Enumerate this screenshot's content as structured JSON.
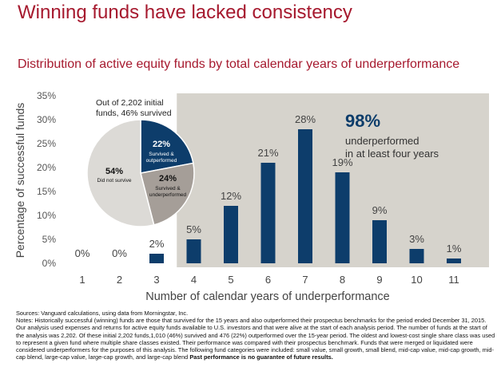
{
  "title": "Winning funds have lacked consistency",
  "subtitle": "Distribution of active equity funds by total calendar years of underperformance",
  "colors": {
    "title": "#a6192e",
    "bar": "#0d3d6b",
    "shade": "#d6d3cc",
    "pie_outperf": "#0d3d6b",
    "pie_underperf": "#a59e98",
    "pie_nosurvive": "#dcdad6"
  },
  "chart_data": {
    "type": "bar",
    "categories": [
      "1",
      "2",
      "3",
      "4",
      "5",
      "6",
      "7",
      "8",
      "9",
      "10",
      "11"
    ],
    "values": [
      0,
      0,
      2,
      5,
      12,
      21,
      28,
      19,
      9,
      3,
      1
    ],
    "labels": [
      "0%",
      "0%",
      "2%",
      "5%",
      "12%",
      "21%",
      "28%",
      "19%",
      "9%",
      "3%",
      "1%"
    ],
    "xlabel": "Number of calendar years of underperformance",
    "ylabel": "Percentage of successful funds",
    "ylim": [
      0,
      35
    ],
    "yticks": [
      "0%",
      "5%",
      "10%",
      "15%",
      "20%",
      "25%",
      "30%",
      "35%"
    ],
    "shaded_from_category": "4",
    "annotation": {
      "big": "98%",
      "text1": "underperformed",
      "text2": "in at least four years"
    },
    "inset_pie": {
      "title1": "Out of 2,202 initial",
      "title2": "funds, 46% survived",
      "slices": [
        {
          "value": 22,
          "pct": "22%",
          "label1": "Survived &",
          "label2": "outperformed"
        },
        {
          "value": 24,
          "pct": "24%",
          "label1": "Survived &",
          "label2": "underperformed"
        },
        {
          "value": 54,
          "pct": "54%",
          "label1": "Did not survive",
          "label2": ""
        }
      ]
    }
  },
  "notes": {
    "sources": "Sources: Vanguard calculations, using data from Morningstar, Inc.",
    "body": "Notes: Historically successful (winning) funds are those that survived for the 15 years and also outperformed their prospectus benchmarks for the period ended December 31, 2015. Our analysis used expenses and returns for active equity funds available to U.S. investors and that were alive at the start of each analysis period. The number of funds at the start of the analysis was 2,202. Of these initial 2,202 funds,1,010 (46%) survived and 476 (22%) outperformed over the 15-year period. The oldest and lowest-cost single share class was used to represent a given fund where multiple share classes existed. Their performance was compared with their prospectus benchmark. Funds that were merged or liquidated were considered underperformers for the purposes of this analysis. The following fund categories were included: small value, small growth, small blend, mid-cap value, mid-cap growth, mid-cap blend, large-cap value, large-cap growth, and large-cap blend",
    "bold": "Past performance is no guarantee of future results."
  }
}
